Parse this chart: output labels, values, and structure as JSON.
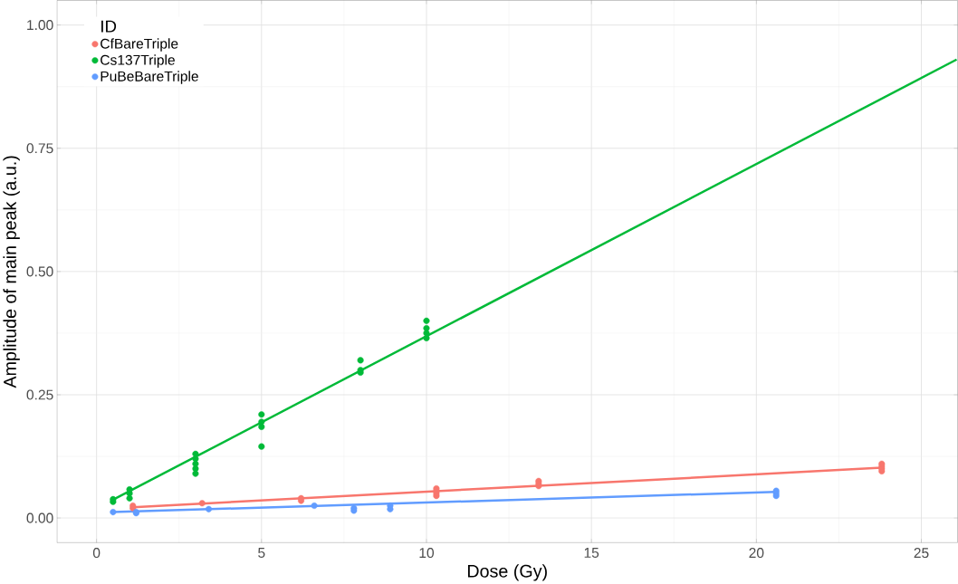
{
  "chart_data": {
    "type": "scatter",
    "xlabel": "Dose (Gy)",
    "ylabel": "Amplitude of main peak (a.u.)",
    "legend_title": "ID",
    "legend": "top left",
    "grid": true,
    "xlim": [
      -1.2,
      26.1
    ],
    "ylim": [
      -0.05,
      1.05
    ],
    "xticks": [
      0,
      5,
      10,
      15,
      20,
      25
    ],
    "yticks": [
      {
        "value": 0,
        "label": "0.00"
      },
      {
        "value": 0.25,
        "label": "0.25"
      },
      {
        "value": 0.5,
        "label": "0.50"
      },
      {
        "value": 0.75,
        "label": "0.75"
      },
      {
        "value": 1,
        "label": "1.00"
      }
    ],
    "series": [
      {
        "name": "CfBareTriple",
        "marker": "circle",
        "color": "#f8766d",
        "x": [
          1.1,
          1.1,
          3.2,
          6.2,
          6.2,
          10.3,
          10.3,
          10.3,
          10.3,
          13.4,
          13.4,
          13.4,
          23.8,
          23.8,
          23.8,
          23.8
        ],
        "values": [
          0.02,
          0.025,
          0.03,
          0.035,
          0.04,
          0.045,
          0.05,
          0.055,
          0.06,
          0.065,
          0.07,
          0.075,
          0.095,
          0.1,
          0.105,
          0.11
        ]
      },
      {
        "name": "Cs137Triple",
        "marker": "circle",
        "color": "#00ba38",
        "x": [
          0.5,
          0.5,
          1,
          1,
          1,
          3,
          3,
          3,
          3,
          3,
          5,
          5,
          5,
          5,
          8,
          8,
          8,
          10,
          10,
          10,
          10
        ],
        "values": [
          0.033,
          0.038,
          0.04,
          0.05,
          0.058,
          0.09,
          0.1,
          0.11,
          0.12,
          0.13,
          0.145,
          0.185,
          0.195,
          0.21,
          0.295,
          0.3,
          0.32,
          0.365,
          0.375,
          0.385,
          0.4
        ]
      },
      {
        "name": "PuBeBareTriple",
        "marker": "circle",
        "color": "#619cff",
        "x": [
          0.5,
          1.2,
          1.2,
          3.4,
          6.6,
          7.8,
          7.8,
          8.9,
          8.9,
          20.6,
          20.6,
          20.6
        ],
        "values": [
          0.012,
          0.01,
          0.012,
          0.018,
          0.025,
          0.015,
          0.02,
          0.018,
          0.025,
          0.045,
          0.05,
          0.055
        ]
      },
      {
        "type": "line",
        "color": "#f8766d",
        "x": [
          1.1,
          23.8
        ],
        "values": [
          0.022,
          0.102
        ]
      },
      {
        "type": "line",
        "color": "#00ba38",
        "x": [
          0.5,
          26.07
        ],
        "values": [
          0.037,
          0.93
        ]
      },
      {
        "type": "line",
        "color": "#619cff",
        "x": [
          0.5,
          20.6
        ],
        "values": [
          0.012,
          0.053
        ]
      }
    ]
  }
}
